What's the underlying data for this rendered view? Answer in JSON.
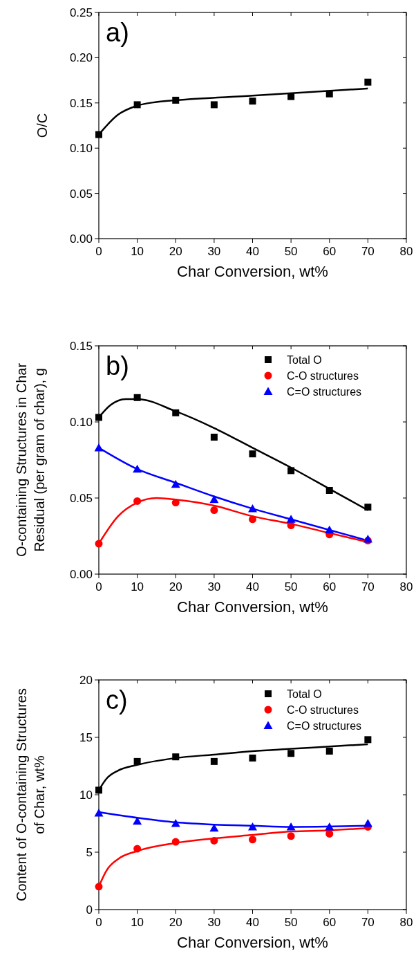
{
  "chart_data": [
    {
      "type": "scatter",
      "xlabel": "Char Conversion, wt%",
      "ylabel": "O/C",
      "annotations": [
        "a)"
      ],
      "xlim": [
        0,
        80
      ],
      "xticks": [
        0,
        10,
        20,
        30,
        40,
        50,
        60,
        70,
        80
      ],
      "ylim": [
        0,
        0.25
      ],
      "yticks": [
        {
          "value": 0,
          "label": "0.00"
        },
        {
          "value": 0.05,
          "label": "0.05"
        },
        {
          "value": 0.1,
          "label": "0.10"
        },
        {
          "value": 0.15,
          "label": "0.15"
        },
        {
          "value": 0.2,
          "label": "0.20"
        },
        {
          "value": 0.25,
          "label": "0.25"
        }
      ],
      "legend": false,
      "series": [
        {
          "color": "#000000",
          "marker": "square",
          "x": [
            0,
            10,
            20,
            30,
            40,
            50,
            60,
            70
          ],
          "values": [
            0.115,
            0.148,
            0.153,
            0.148,
            0.152,
            0.157,
            0.16,
            0.173
          ]
        },
        {
          "type": "line",
          "color": "#000000",
          "marker": "none",
          "x": [
            0,
            5,
            10,
            15,
            20,
            40,
            70
          ],
          "values": [
            0.115,
            0.137,
            0.147,
            0.151,
            0.153,
            0.158,
            0.166
          ]
        }
      ]
    },
    {
      "type": "scatter",
      "xlabel": "Char Conversion, wt%",
      "ylabel": "O-containing Structures in Char\nResidual (per gram of char), g",
      "annotations": [
        "b)"
      ],
      "xlim": [
        0,
        80
      ],
      "xticks": [
        0,
        10,
        20,
        30,
        40,
        50,
        60,
        70,
        80
      ],
      "ylim": [
        0,
        0.15
      ],
      "yticks": [
        {
          "value": 0,
          "label": "0.00"
        },
        {
          "value": 0.05,
          "label": "0.05"
        },
        {
          "value": 0.1,
          "label": "0.10"
        },
        {
          "value": 0.15,
          "label": "0.15"
        }
      ],
      "legend": "top right",
      "series": [
        {
          "name": "Total O",
          "color": "#000000",
          "marker": "square",
          "x": [
            0,
            10,
            20,
            30,
            40,
            50,
            60,
            70
          ],
          "values": [
            0.103,
            0.116,
            0.106,
            0.09,
            0.079,
            0.068,
            0.055,
            0.044
          ]
        },
        {
          "name": "C-O structures",
          "color": "#ff0000",
          "marker": "circle",
          "x": [
            0,
            10,
            20,
            30,
            40,
            50,
            60,
            70
          ],
          "values": [
            0.02,
            0.048,
            0.047,
            0.042,
            0.036,
            0.032,
            0.026,
            0.022
          ]
        },
        {
          "name": "C=O structures",
          "color": "#0000ff",
          "marker": "triangle",
          "x": [
            0,
            10,
            20,
            30,
            40,
            50,
            60,
            70
          ],
          "values": [
            0.083,
            0.069,
            0.059,
            0.049,
            0.043,
            0.036,
            0.029,
            0.023
          ]
        },
        {
          "type": "line",
          "color": "#000000",
          "marker": "none",
          "x": [
            0,
            3,
            7,
            10,
            20,
            30,
            40,
            50,
            60,
            70
          ],
          "values": [
            0.103,
            0.111,
            0.115,
            0.115,
            0.107,
            0.096,
            0.083,
            0.07,
            0.056,
            0.042
          ]
        },
        {
          "type": "line",
          "color": "#ff0000",
          "marker": "none",
          "x": [
            0,
            5,
            10,
            15,
            20,
            30,
            40,
            50,
            60,
            70
          ],
          "values": [
            0.02,
            0.038,
            0.047,
            0.05,
            0.049,
            0.045,
            0.038,
            0.033,
            0.027,
            0.021
          ]
        },
        {
          "type": "line",
          "color": "#0000ff",
          "marker": "none",
          "x": [
            0,
            10,
            20,
            30,
            40,
            50,
            60,
            70
          ],
          "values": [
            0.083,
            0.069,
            0.06,
            0.051,
            0.043,
            0.036,
            0.029,
            0.022
          ]
        }
      ]
    },
    {
      "type": "scatter",
      "xlabel": "Char Conversion, wt%",
      "ylabel": "Content of O-containing Structures\nof Char, wt%",
      "annotations": [
        "c)"
      ],
      "xlim": [
        0,
        80
      ],
      "xticks": [
        0,
        10,
        20,
        30,
        40,
        50,
        60,
        70,
        80
      ],
      "ylim": [
        0,
        20
      ],
      "yticks": [
        0,
        5,
        10,
        15,
        20
      ],
      "legend": "top right",
      "series": [
        {
          "name": "Total O",
          "color": "#000000",
          "marker": "square",
          "x": [
            0,
            10,
            20,
            30,
            40,
            50,
            60,
            70
          ],
          "values": [
            10.4,
            12.9,
            13.3,
            12.9,
            13.2,
            13.6,
            13.8,
            14.8
          ]
        },
        {
          "name": "C-O structures",
          "color": "#ff0000",
          "marker": "circle",
          "x": [
            0,
            10,
            20,
            30,
            40,
            50,
            60,
            70
          ],
          "values": [
            2.0,
            5.3,
            5.9,
            6.0,
            6.1,
            6.4,
            6.6,
            7.2
          ]
        },
        {
          "name": "C=O structures",
          "color": "#0000ff",
          "marker": "triangle",
          "x": [
            0,
            10,
            20,
            30,
            40,
            50,
            60,
            70
          ],
          "values": [
            8.4,
            7.7,
            7.5,
            7.1,
            7.2,
            7.2,
            7.2,
            7.5
          ]
        },
        {
          "type": "line",
          "color": "#000000",
          "marker": "none",
          "x": [
            0,
            2,
            5,
            10,
            20,
            30,
            40,
            50,
            60,
            70
          ],
          "values": [
            10.4,
            11.4,
            12.1,
            12.6,
            13.2,
            13.5,
            13.8,
            14.0,
            14.2,
            14.4
          ]
        },
        {
          "type": "line",
          "color": "#ff0000",
          "marker": "none",
          "x": [
            0,
            2,
            5,
            10,
            20,
            30,
            40,
            50,
            60,
            70
          ],
          "values": [
            2.0,
            3.4,
            4.4,
            5.1,
            5.8,
            6.2,
            6.5,
            6.8,
            6.9,
            7.1
          ]
        },
        {
          "type": "line",
          "color": "#0000ff",
          "marker": "none",
          "x": [
            0,
            10,
            20,
            30,
            40,
            50,
            70
          ],
          "values": [
            8.5,
            8.0,
            7.6,
            7.4,
            7.3,
            7.2,
            7.3
          ]
        }
      ]
    }
  ]
}
